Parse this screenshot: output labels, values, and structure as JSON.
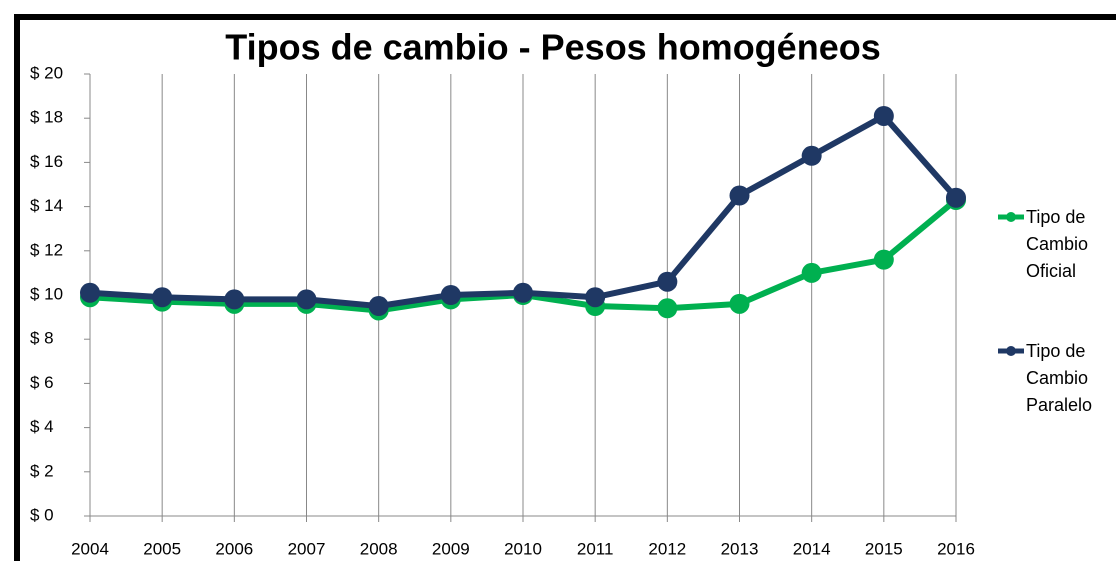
{
  "chart_data": {
    "type": "line",
    "title": "Tipos de cambio - Pesos homogéneos",
    "x": [
      2004,
      2005,
      2006,
      2007,
      2008,
      2009,
      2010,
      2011,
      2012,
      2013,
      2014,
      2015,
      2016
    ],
    "xlim": [
      2004,
      2016
    ],
    "series": [
      {
        "name": "Tipo de Cambio Oficial",
        "color": "#00b050",
        "values": [
          9.9,
          9.7,
          9.6,
          9.6,
          9.3,
          9.8,
          10.0,
          9.5,
          9.4,
          9.6,
          11.0,
          11.6,
          14.3
        ]
      },
      {
        "name": "Tipo de Cambio Paralelo",
        "color": "#1f3864",
        "values": [
          10.1,
          9.9,
          9.8,
          9.8,
          9.5,
          10.0,
          10.1,
          9.9,
          10.6,
          14.5,
          16.3,
          18.1,
          14.4
        ]
      }
    ],
    "ylim": [
      0,
      20
    ],
    "yticks": [
      {
        "value": 0,
        "label": "$ 0"
      },
      {
        "value": 2,
        "label": "$ 2"
      },
      {
        "value": 4,
        "label": "$ 4"
      },
      {
        "value": 6,
        "label": "$ 6"
      },
      {
        "value": 8,
        "label": "$ 8"
      },
      {
        "value": 10,
        "label": "$ 10"
      },
      {
        "value": 12,
        "label": "$ 12"
      },
      {
        "value": 14,
        "label": "$ 14"
      },
      {
        "value": 16,
        "label": "$ 16"
      },
      {
        "value": 18,
        "label": "$ 18"
      },
      {
        "value": 20,
        "label": "$ 20"
      }
    ],
    "grid": "x",
    "legend": "right"
  }
}
